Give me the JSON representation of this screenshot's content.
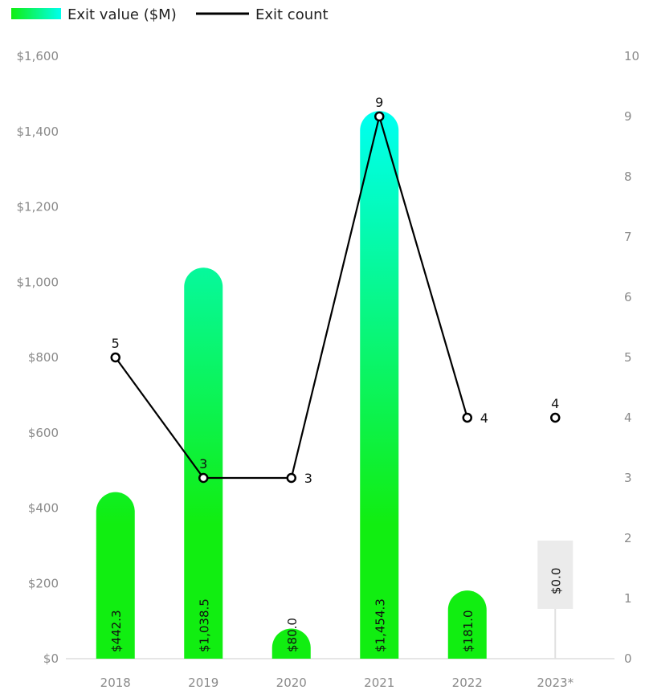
{
  "chart_data": {
    "type": "bar",
    "categories": [
      "2018",
      "2019",
      "2020",
      "2021",
      "2022",
      "2023*"
    ],
    "series": [
      {
        "name": "Exit value ($M)",
        "type": "bar",
        "axis": "left",
        "values": [
          442.3,
          1038.5,
          80.0,
          1454.3,
          181.0,
          0.0
        ],
        "labels": [
          "$442.3",
          "$1,038.5",
          "$80.0",
          "$1,454.3",
          "$181.0",
          "$0.0"
        ]
      },
      {
        "name": "Exit count",
        "type": "line",
        "axis": "right",
        "values": [
          5,
          3,
          3,
          9,
          4,
          4
        ],
        "labels": [
          "5",
          "3",
          "3",
          "9",
          "4",
          "4"
        ]
      }
    ],
    "y_left": {
      "min": 0,
      "max": 1600,
      "ticks": [
        0,
        200,
        400,
        600,
        800,
        1000,
        1200,
        1400,
        1600
      ],
      "tick_labels": [
        "$0",
        "$200",
        "$400",
        "$600",
        "$800",
        "$1,000",
        "$1,200",
        "$1,400",
        "$1,600"
      ]
    },
    "y_right": {
      "min": 0,
      "max": 10,
      "ticks": [
        0,
        1,
        2,
        3,
        4,
        5,
        6,
        7,
        8,
        9,
        10
      ],
      "tick_labels": [
        "0",
        "1",
        "2",
        "3",
        "4",
        "5",
        "6",
        "7",
        "8",
        "9",
        "10"
      ]
    },
    "legend": {
      "placement": "top-left",
      "entries": [
        "Exit value ($M)",
        "Exit count"
      ]
    },
    "grid": false,
    "colors": {
      "bar_bottom": "#11ee11",
      "bar_top": "#00ffee",
      "line": "#000000",
      "placeholder_bar": "#ebebeb"
    }
  }
}
